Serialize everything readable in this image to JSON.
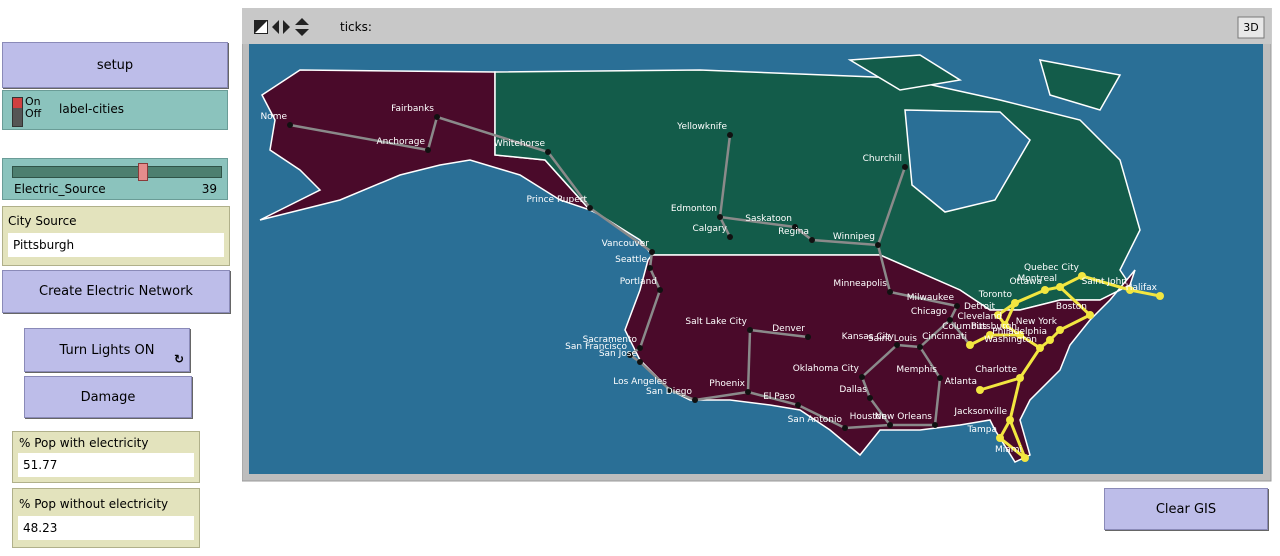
{
  "view": {
    "ticks_label": "ticks:",
    "three_d": "3D"
  },
  "widgets": {
    "setup": "setup",
    "label_cities": {
      "on": "On",
      "off": "Off",
      "label": "label-cities"
    },
    "slider": {
      "label": "Electric_Source",
      "value": 39
    },
    "city_source": {
      "label": "City Source",
      "value": "Pittsburgh"
    },
    "create": "Create Electric Network",
    "lights": "Turn Lights ON",
    "damage": "Damage",
    "with": {
      "label": "% Pop with electricity",
      "value": 51.77
    },
    "without": {
      "label": "% Pop without electricity",
      "value": 48.23
    },
    "clear": "Clear GIS"
  },
  "cities": [
    "Nome",
    "Fairbanks",
    "Anchorage",
    "Whitehorse",
    "Prince Rupert",
    "Yellowknife",
    "Churchill",
    "Edmonton",
    "Calgary",
    "Saskatoon",
    "Regina",
    "Winnipeg",
    "Vancouver",
    "Seattle",
    "Portland",
    "Minneapolis",
    "Milwaukee",
    "Chicago",
    "Detroit",
    "Toronto",
    "Ottawa",
    "Quebec City",
    "Montreal",
    "Saint John",
    "Halifax",
    "Boston",
    "New York",
    "Cleveland",
    "Pittsburgh",
    "Columbus",
    "Cincinnati",
    "Philadelphia",
    "Washington",
    "Salt Lake City",
    "Denver",
    "Sacramento",
    "San Francisco",
    "San Jose",
    "Kansas City",
    "Saint Louis",
    "Oklahoma City",
    "Memphis",
    "Los Angeles",
    "San Diego",
    "Phoenix",
    "Dallas",
    "El Paso",
    "Atlanta",
    "Charlotte",
    "San Antonio",
    "Houston",
    "New Orleans",
    "Jacksonville",
    "Tampa",
    "Miami"
  ]
}
